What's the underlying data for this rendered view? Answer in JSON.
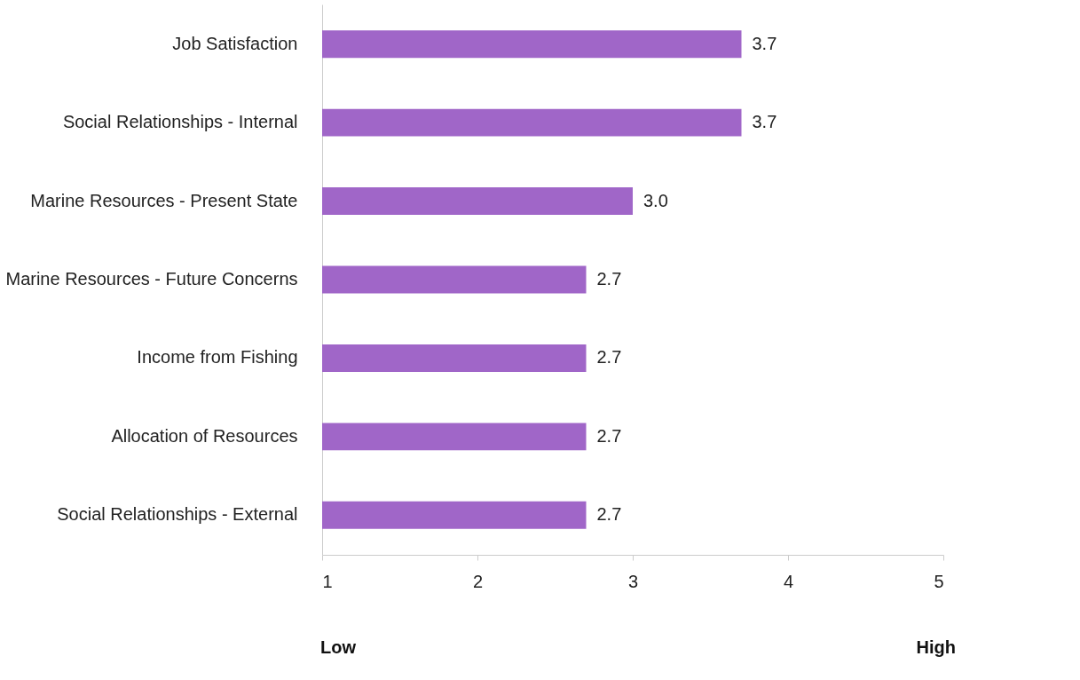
{
  "chart_data": {
    "type": "bar",
    "orientation": "horizontal",
    "categories": [
      "Job Satisfaction",
      "Social Relationships - Internal",
      "Marine Resources - Present State",
      "Marine Resources - Future Concerns",
      "Income from Fishing",
      "Allocation of Resources",
      "Social Relationships - External"
    ],
    "values": [
      3.7,
      3.7,
      3.0,
      2.7,
      2.7,
      2.7,
      2.7
    ],
    "value_labels": [
      "3.7",
      "3.7",
      "3.0",
      "2.7",
      "2.7",
      "2.7",
      "2.7"
    ],
    "color": "#a066c8",
    "xlim": [
      1,
      5
    ],
    "xticks": [
      1,
      2,
      3,
      4,
      5
    ],
    "grid": false,
    "annotations": [
      "Low",
      "High"
    ]
  }
}
